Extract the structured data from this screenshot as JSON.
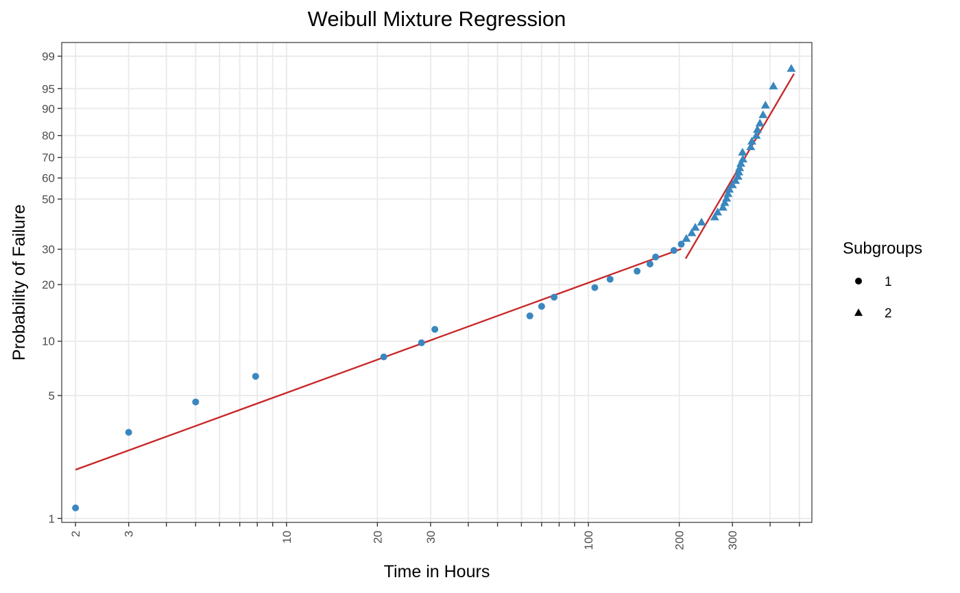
{
  "chart_data": {
    "type": "scatter",
    "title": "Weibull Mixture Regression",
    "xlabel": "Time in Hours",
    "ylabel": "Probability of Failure",
    "x_scale": "log",
    "y_scale": "weibull-probability",
    "xlim": [
      1.8,
      550
    ],
    "ylim_percent": [
      0.95,
      99.6
    ],
    "x_ticks": [
      2,
      3,
      10,
      20,
      30,
      100,
      200,
      300
    ],
    "x_tick_labels": [
      "2",
      "3",
      "10",
      "20",
      "30",
      "100",
      "200",
      "300"
    ],
    "y_ticks": [
      1,
      5,
      10,
      20,
      30,
      50,
      60,
      70,
      80,
      90,
      95,
      99
    ],
    "y_tick_labels": [
      "1",
      "5",
      "10",
      "20",
      "30",
      "50",
      "60",
      "70",
      "80",
      "90",
      "95",
      "99"
    ],
    "grid": true,
    "legend": {
      "title": "Subgroups",
      "position": "right",
      "entries": [
        {
          "label": "1",
          "shape": "circle"
        },
        {
          "label": "2",
          "shape": "triangle"
        }
      ]
    },
    "colors": {
      "points": "#3a87bf",
      "fit_line": "#c8282a",
      "grid": "#ebebeb",
      "panel_border": "#333333"
    },
    "series": [
      {
        "subgroup": "1",
        "shape": "circle",
        "points": [
          [
            2.0,
            1.15
          ],
          [
            3.0,
            3.1
          ],
          [
            5.0,
            4.6
          ],
          [
            7.9,
            6.4
          ],
          [
            21,
            8.2
          ],
          [
            28,
            9.8
          ],
          [
            31,
            11.6
          ],
          [
            64,
            13.7
          ],
          [
            70,
            15.4
          ],
          [
            77,
            17.2
          ],
          [
            105,
            19.3
          ],
          [
            118,
            21.3
          ],
          [
            145,
            23.4
          ],
          [
            160,
            25.4
          ],
          [
            167,
            27.5
          ],
          [
            192,
            29.6
          ],
          [
            203,
            31.7
          ]
        ],
        "fit_line": [
          [
            2.0,
            1.9
          ],
          [
            203,
            30.1
          ]
        ]
      },
      {
        "subgroup": "2",
        "shape": "triangle",
        "points": [
          [
            211,
            33.7
          ],
          [
            220,
            35.8
          ],
          [
            226,
            37.9
          ],
          [
            237,
            40.0
          ],
          [
            262,
            42.1
          ],
          [
            268,
            44.2
          ],
          [
            279,
            46.3
          ],
          [
            283,
            48.4
          ],
          [
            287,
            50.4
          ],
          [
            290,
            52.5
          ],
          [
            293,
            54.6
          ],
          [
            300,
            56.7
          ],
          [
            307,
            58.8
          ],
          [
            313,
            60.8
          ],
          [
            315,
            62.9
          ],
          [
            317,
            65.0
          ],
          [
            320,
            67.1
          ],
          [
            325,
            69.2
          ],
          [
            324,
            72.5
          ],
          [
            345,
            75.0
          ],
          [
            348,
            77.5
          ],
          [
            360,
            80.0
          ],
          [
            363,
            82.5
          ],
          [
            370,
            85.0
          ],
          [
            379,
            88.0
          ],
          [
            386,
            91.0
          ],
          [
            410,
            95.5
          ],
          [
            470,
            98.0
          ]
        ],
        "fit_line": [
          [
            210,
            27.0
          ],
          [
            480,
            97.4
          ]
        ]
      }
    ]
  }
}
